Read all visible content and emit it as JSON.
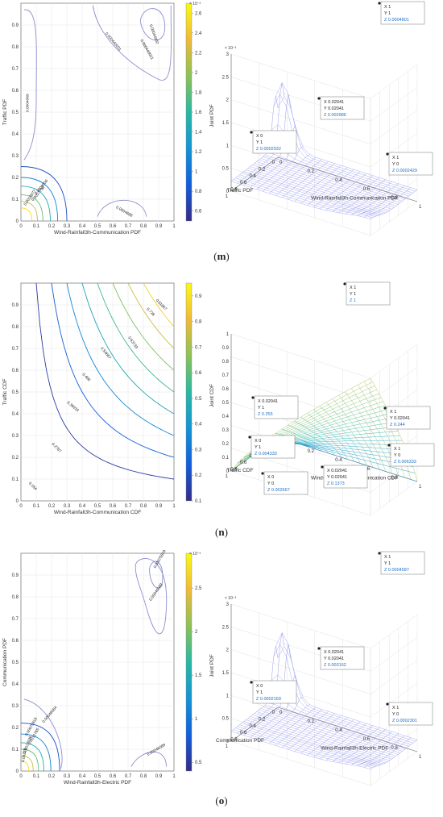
{
  "panels": [
    {
      "caption": "m",
      "contour": {
        "xlabel": "Wind-Rainfall3h-Communication PDF",
        "ylabel": "Traffic PDF",
        "xticks": [
          "0",
          "0.1",
          "0.2",
          "0.3",
          "0.4",
          "0.5",
          "0.6",
          "0.7",
          "0.8",
          "0.9",
          "1"
        ],
        "yticks": [
          "0",
          "0.1",
          "0.2",
          "0.3",
          "0.4",
          "0.5",
          "0.6",
          "0.7",
          "0.8",
          "0.9"
        ],
        "colorbar": {
          "exponent": "× 10⁻³",
          "ticks": [
            "0.6",
            "0.8",
            "1",
            "1.2",
            "1.4",
            "1.6",
            "1.8",
            "2",
            "2.2",
            "2.4",
            "2.6"
          ],
          "min": 0.5,
          "max": 2.7
        },
        "labels": [
          "0.0004069",
          "0.000440031",
          "0.000440021",
          "0.0004688",
          "0.0009008",
          "0.0017798",
          "0.0018577",
          "0.00044002"
        ]
      },
      "surface": {
        "zlabel": "Joint PDF",
        "xlabel": "Wind-Rainfall3h-Communication PDF",
        "ylabel": "Traffic PDF",
        "exponent": "× 10⁻³",
        "zticks": [
          "0",
          "0.5",
          "1",
          "1.5",
          "2",
          "2.5",
          "3"
        ],
        "xticks": [
          "0",
          "0.2",
          "0.4",
          "0.6",
          "0.8",
          "1"
        ],
        "yticks": [
          "0",
          "0.2",
          "0.4",
          "0.6",
          "0.8",
          "1"
        ],
        "tooltips": [
          {
            "x": "X 1",
            "y": "Y 1",
            "z": "Z 0.0004801"
          },
          {
            "x": "X 0.02041",
            "y": "Y 0.02041",
            "z": "Z 0.002986"
          },
          {
            "x": "X 0",
            "y": "Y 1",
            "z": "Z 0.0002932"
          },
          {
            "x": "X 1",
            "y": "Y 0",
            "z": "Z 0.0002429"
          }
        ]
      }
    },
    {
      "caption": "n",
      "contour": {
        "xlabel": "Wind-Rainfall3h-Communication CDF",
        "ylabel": "Traffic CDF",
        "xticks": [
          "0",
          "0.1",
          "0.2",
          "0.3",
          "0.4",
          "0.5",
          "0.6",
          "0.7",
          "0.8",
          "0.9",
          "1"
        ],
        "yticks": [
          "0",
          "0.1",
          "0.2",
          "0.3",
          "0.4",
          "0.5",
          "0.6",
          "0.7",
          "0.8",
          "0.9"
        ],
        "colorbar": {
          "exponent": "",
          "ticks": [
            "0.1",
            "0.2",
            "0.3",
            "0.4",
            "0.5",
            "0.6",
            "0.7",
            "0.8",
            "0.9"
          ],
          "min": 0.1,
          "max": 0.95
        },
        "labels": [
          "0.184",
          "0.2787",
          "0.36933",
          "0.466",
          "0.54667",
          "0.63733",
          "0.728",
          "0.81867"
        ]
      },
      "surface": {
        "zlabel": "Joint CDF",
        "xlabel": "Wind-Rainfall3h-Communication CDF",
        "ylabel": "Traffic CDF",
        "exponent": "",
        "zticks": [
          "0",
          "0.1",
          "0.2",
          "0.3",
          "0.4",
          "0.5",
          "0.6",
          "0.7",
          "0.8",
          "0.9",
          "1"
        ],
        "xticks": [
          "0",
          "0.2",
          "0.4",
          "0.6",
          "0.8",
          "1"
        ],
        "yticks": [
          "0",
          "0.2",
          "0.4",
          "0.6",
          "0.8",
          "1"
        ],
        "tooltips": [
          {
            "x": "X 1",
            "y": "Y 1",
            "z": "Z 1"
          },
          {
            "x": "X 0.02041",
            "y": "Y 1",
            "z": "Z 0.255"
          },
          {
            "x": "X 1",
            "y": "Y 0.02041",
            "z": "Z 0.244"
          },
          {
            "x": "X 0",
            "y": "Y 1",
            "z": "Z 0.004333"
          },
          {
            "x": "X 1",
            "y": "Y 0",
            "z": "Z 0.006333"
          },
          {
            "x": "X 0.02041",
            "y": "Y 0.02041",
            "z": "Z 0.1373"
          },
          {
            "x": "X 0",
            "y": "Y 0",
            "z": "Z 0.002667"
          }
        ]
      }
    },
    {
      "caption": "o",
      "contour": {
        "xlabel": "Wind-Rainfall3h-Electric PDF",
        "ylabel": "Communication PDF",
        "xticks": [
          "0",
          "0.1",
          "0.2",
          "0.3",
          "0.4",
          "0.5",
          "0.6",
          "0.7",
          "0.8",
          "0.9",
          "1"
        ],
        "yticks": [
          "0",
          "0.1",
          "0.2",
          "0.3",
          "0.4",
          "0.5",
          "0.6",
          "0.7",
          "0.8",
          "0.9"
        ],
        "colorbar": {
          "exponent": "× 10⁻³",
          "ticks": [
            "0.5",
            "1",
            "1.5",
            "2",
            "2.5"
          ],
          "min": 0.4,
          "max": 2.9
        },
        "labels": [
          "0.00075819",
          "0.00046089",
          "0.00046084",
          "0.00046089",
          "0.00075819",
          "0.0012765",
          "0.0017536",
          "0.00228"
        ]
      },
      "surface": {
        "zlabel": "Joint PDF",
        "xlabel": "Wind-Rainfall3h-Electric PDF",
        "ylabel": "Communication PDF",
        "exponent": "× 10⁻³",
        "zticks": [
          "0",
          "0.5",
          "1",
          "1.5",
          "2",
          "2.5",
          "3"
        ],
        "xticks": [
          "0",
          "0.2",
          "0.4",
          "0.6",
          "0.8",
          "1"
        ],
        "yticks": [
          "0",
          "0.2",
          "0.4",
          "0.6",
          "0.8",
          "1"
        ],
        "tooltips": [
          {
            "x": "X 1",
            "y": "Y 1",
            "z": "Z 0.0004587"
          },
          {
            "x": "X 0.02041",
            "y": "Y 0.02041",
            "z": "Z 0.003162"
          },
          {
            "x": "X 0",
            "y": "Y 1",
            "z": "Z 0.0002169"
          },
          {
            "x": "X 1",
            "y": "Y 0",
            "z": "Z 0.0002301"
          }
        ]
      }
    }
  ],
  "chart_data": [
    {
      "type": "heatmap",
      "title": "",
      "xlabel": "Wind-Rainfall3h-Communication PDF",
      "ylabel": "Traffic PDF",
      "xlim": [
        0,
        1
      ],
      "ylim": [
        0,
        1
      ],
      "colorbar_range": [
        0.0005,
        0.0027
      ]
    },
    {
      "type": "area",
      "title": "",
      "xlabel": "Wind-Rainfall3h-Communication PDF",
      "ylabel": "Traffic PDF",
      "zlabel": "Joint PDF",
      "points": [
        {
          "x": 1,
          "y": 1,
          "z": 0.0004801
        },
        {
          "x": 0.02041,
          "y": 0.02041,
          "z": 0.002986
        },
        {
          "x": 0,
          "y": 1,
          "z": 0.0002932
        },
        {
          "x": 1,
          "y": 0,
          "z": 0.0002429
        }
      ]
    },
    {
      "type": "heatmap",
      "title": "",
      "xlabel": "Wind-Rainfall3h-Communication CDF",
      "ylabel": "Traffic CDF",
      "xlim": [
        0,
        1
      ],
      "ylim": [
        0,
        1
      ],
      "colorbar_range": [
        0.1,
        0.95
      ]
    },
    {
      "type": "area",
      "title": "",
      "xlabel": "Wind-Rainfall3h-Communication CDF",
      "ylabel": "Traffic CDF",
      "zlabel": "Joint CDF",
      "points": [
        {
          "x": 1,
          "y": 1,
          "z": 1
        },
        {
          "x": 0.02041,
          "y": 1,
          "z": 0.255
        },
        {
          "x": 1,
          "y": 0.02041,
          "z": 0.244
        },
        {
          "x": 0,
          "y": 1,
          "z": 0.004333
        },
        {
          "x": 1,
          "y": 0,
          "z": 0.006333
        },
        {
          "x": 0.02041,
          "y": 0.02041,
          "z": 0.1373
        },
        {
          "x": 0,
          "y": 0,
          "z": 0.002667
        }
      ]
    },
    {
      "type": "heatmap",
      "title": "",
      "xlabel": "Wind-Rainfall3h-Electric PDF",
      "ylabel": "Communication PDF",
      "xlim": [
        0,
        1
      ],
      "ylim": [
        0,
        1
      ],
      "colorbar_range": [
        0.0004,
        0.0029
      ]
    },
    {
      "type": "area",
      "title": "",
      "xlabel": "Wind-Rainfall3h-Electric PDF",
      "ylabel": "Communication PDF",
      "zlabel": "Joint PDF",
      "points": [
        {
          "x": 1,
          "y": 1,
          "z": 0.0004587
        },
        {
          "x": 0.02041,
          "y": 0.02041,
          "z": 0.003162
        },
        {
          "x": 0,
          "y": 1,
          "z": 0.0002169
        },
        {
          "x": 1,
          "y": 0,
          "z": 0.0002301
        }
      ]
    }
  ]
}
